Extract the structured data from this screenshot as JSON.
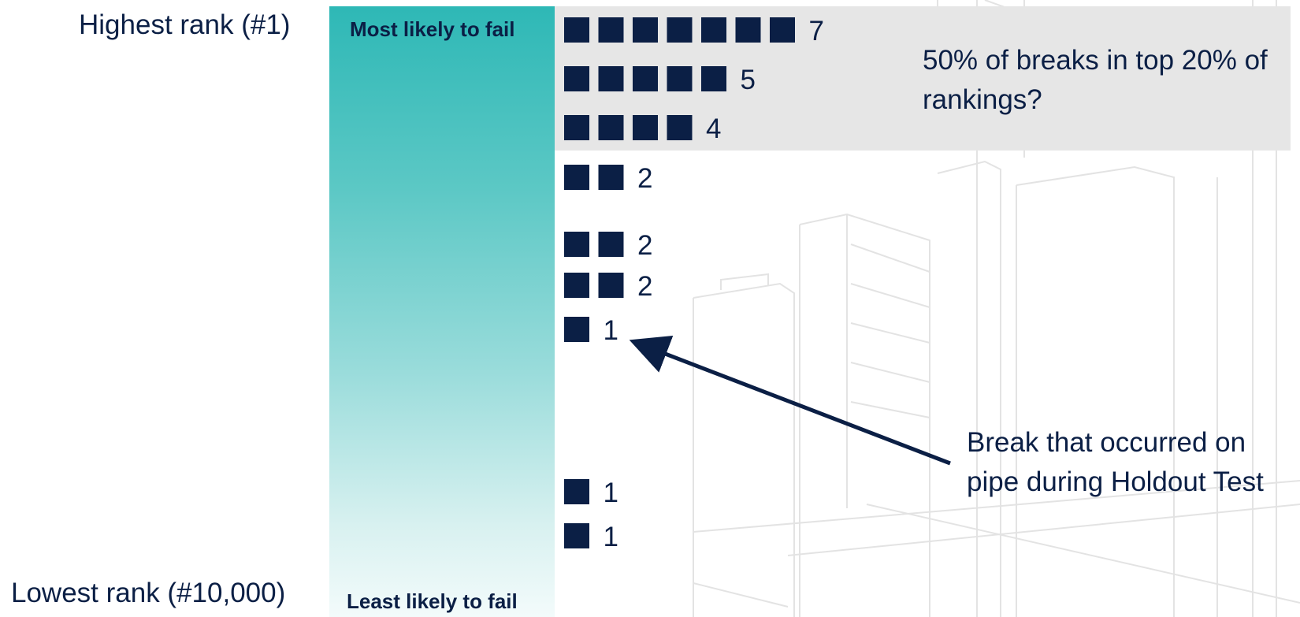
{
  "labels": {
    "highest_rank": "Highest rank (#1)",
    "lowest_rank": "Lowest rank (#10,000)",
    "most_likely": "Most likely to fail",
    "least_likely": "Least likely to fail",
    "highlight": "50% of breaks in top 20% of rankings?",
    "annotation": "Break that occurred on pipe during Holdout Test"
  },
  "colors": {
    "marker": "#0b1f45",
    "gradient_top": "#2eb8b6",
    "gradient_bottom": "#f3fbfb",
    "highlight_box": "#e6e6e6"
  },
  "chart_data": {
    "type": "bar",
    "orientation": "horizontal",
    "categories": [
      "",
      "",
      "",
      "",
      "",
      "",
      "",
      "",
      ""
    ],
    "values": [
      7,
      5,
      4,
      2,
      2,
      2,
      1,
      1,
      1
    ],
    "rank_positions": [
      1,
      2,
      3,
      4,
      5,
      6,
      7,
      8,
      9
    ],
    "y_axis": {
      "top_label": "Highest rank (#1)",
      "bottom_label": "Lowest rank (#10,000)"
    },
    "legend": "none",
    "grid": false
  }
}
